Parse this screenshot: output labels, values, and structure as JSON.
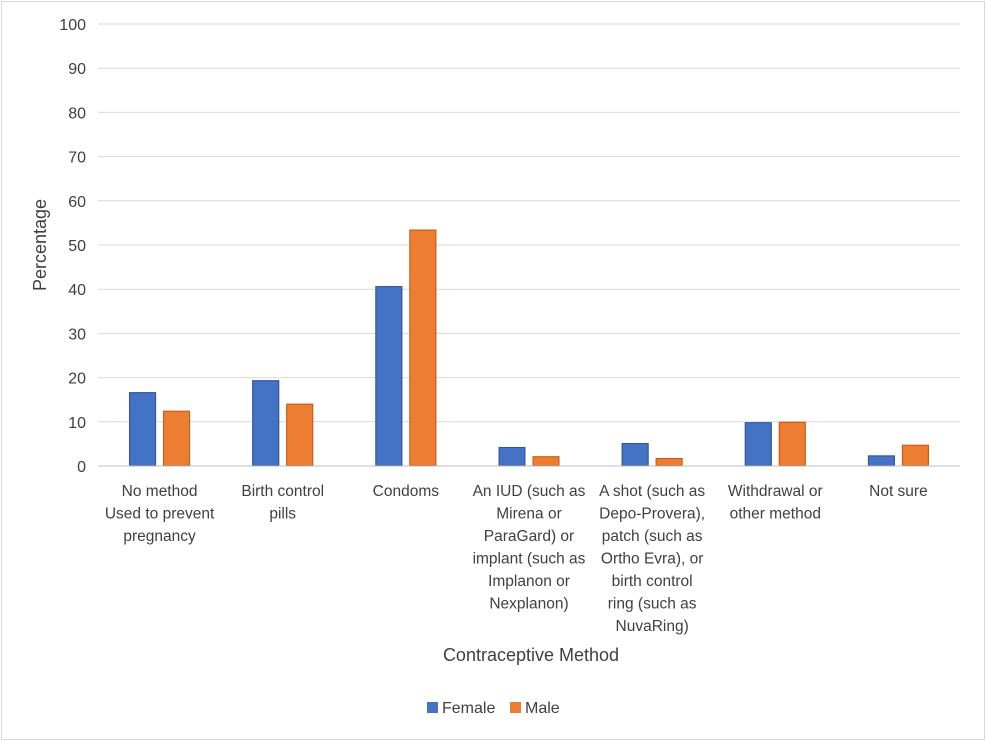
{
  "chart_data": {
    "type": "bar",
    "title": "",
    "xlabel": "Contraceptive Method",
    "ylabel": "Percentage",
    "ylim": [
      0,
      100
    ],
    "yticks": [
      0,
      10,
      20,
      30,
      40,
      50,
      60,
      70,
      80,
      90,
      100
    ],
    "grid": true,
    "legend_position": "bottom",
    "categories": [
      [
        "No method",
        "Used to prevent",
        "pregnancy"
      ],
      [
        "Birth control",
        "pills"
      ],
      [
        "Condoms"
      ],
      [
        "An IUD (such as",
        "Mirena or",
        "ParaGard) or",
        "implant (such as",
        "Implanon or",
        "Nexplanon)"
      ],
      [
        "A shot (such as",
        "Depo-Provera),",
        "patch (such as",
        "Ortho Evra), or",
        "birth control",
        "ring (such as",
        "NuvaRing)"
      ],
      [
        "Withdrawal or",
        "other method"
      ],
      [
        "Not sure"
      ]
    ],
    "series": [
      {
        "name": "Female",
        "color": "#4472c4",
        "values": [
          16.7,
          19.4,
          40.7,
          4.3,
          5.2,
          9.9,
          2.4
        ]
      },
      {
        "name": "Male",
        "color": "#ed7d31",
        "values": [
          12.5,
          14.1,
          53.5,
          2.2,
          1.8,
          10.0,
          4.8
        ]
      }
    ]
  }
}
